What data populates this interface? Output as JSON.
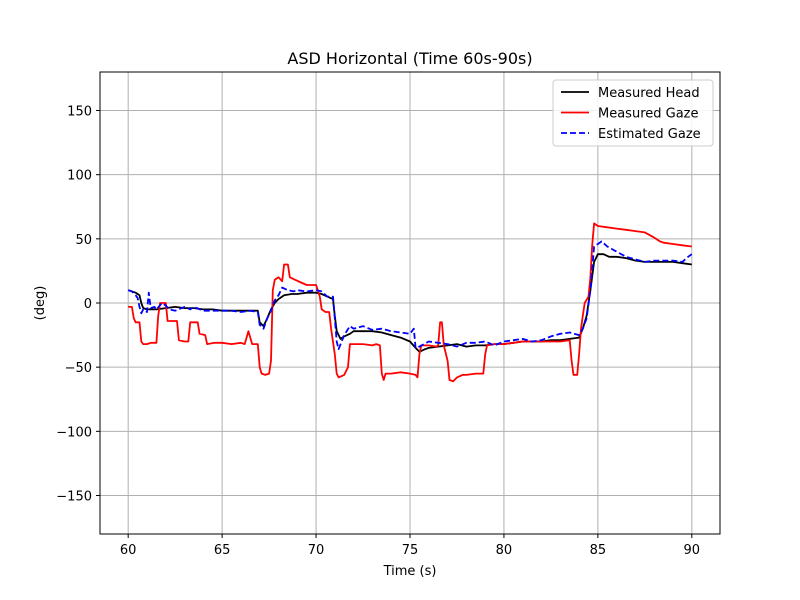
{
  "chart_data": {
    "type": "line",
    "title": "ASD Horizontal (Time 60s-90s)",
    "xlabel": "Time (s)",
    "ylabel": "(deg)",
    "xlim": [
      58.5,
      91.5
    ],
    "ylim": [
      -180,
      180
    ],
    "xticks": [
      60,
      65,
      70,
      75,
      80,
      85,
      90
    ],
    "yticks": [
      -150,
      -100,
      -50,
      0,
      50,
      100,
      150
    ],
    "grid": true,
    "legend_position": "top-right",
    "series": [
      {
        "name": "Measured Head",
        "color": "#000000",
        "dash": "solid",
        "points": [
          [
            60.0,
            10
          ],
          [
            60.4,
            8
          ],
          [
            60.6,
            6
          ],
          [
            60.7,
            0
          ],
          [
            60.8,
            -4
          ],
          [
            61.0,
            -5
          ],
          [
            61.5,
            -5
          ],
          [
            62.0,
            -4
          ],
          [
            62.5,
            -3
          ],
          [
            63.0,
            -4
          ],
          [
            63.5,
            -4
          ],
          [
            64.0,
            -5
          ],
          [
            64.5,
            -5
          ],
          [
            65.0,
            -6
          ],
          [
            65.5,
            -6
          ],
          [
            66.0,
            -6
          ],
          [
            66.5,
            -6
          ],
          [
            66.9,
            -6
          ],
          [
            67.0,
            -15
          ],
          [
            67.2,
            -18
          ],
          [
            67.4,
            -12
          ],
          [
            67.6,
            -5
          ],
          [
            67.8,
            0
          ],
          [
            68.0,
            3
          ],
          [
            68.3,
            6
          ],
          [
            68.7,
            7
          ],
          [
            69.0,
            7
          ],
          [
            69.5,
            8
          ],
          [
            70.0,
            8
          ],
          [
            70.3,
            7
          ],
          [
            70.6,
            5
          ],
          [
            70.9,
            3
          ],
          [
            71.0,
            -10
          ],
          [
            71.1,
            -22
          ],
          [
            71.3,
            -28
          ],
          [
            71.5,
            -26
          ],
          [
            71.8,
            -24
          ],
          [
            72.0,
            -22
          ],
          [
            72.5,
            -22
          ],
          [
            73.0,
            -22
          ],
          [
            73.5,
            -23
          ],
          [
            74.0,
            -25
          ],
          [
            74.5,
            -27
          ],
          [
            75.0,
            -30
          ],
          [
            75.3,
            -35
          ],
          [
            75.5,
            -38
          ],
          [
            75.8,
            -36
          ],
          [
            76.0,
            -35
          ],
          [
            76.5,
            -34
          ],
          [
            77.0,
            -33
          ],
          [
            77.5,
            -32
          ],
          [
            78.0,
            -34
          ],
          [
            78.5,
            -33
          ],
          [
            79.0,
            -33
          ],
          [
            79.5,
            -32
          ],
          [
            80.0,
            -32
          ],
          [
            80.5,
            -31
          ],
          [
            81.0,
            -30
          ],
          [
            81.5,
            -30
          ],
          [
            82.0,
            -30
          ],
          [
            82.5,
            -29
          ],
          [
            83.0,
            -29
          ],
          [
            83.5,
            -28
          ],
          [
            84.0,
            -27
          ],
          [
            84.2,
            -20
          ],
          [
            84.4,
            -10
          ],
          [
            84.6,
            10
          ],
          [
            84.8,
            32
          ],
          [
            85.0,
            38
          ],
          [
            85.3,
            38
          ],
          [
            85.6,
            36
          ],
          [
            86.0,
            36
          ],
          [
            86.5,
            35
          ],
          [
            87.0,
            33
          ],
          [
            87.5,
            32
          ],
          [
            88.0,
            32
          ],
          [
            88.5,
            32
          ],
          [
            89.0,
            32
          ],
          [
            89.5,
            31
          ],
          [
            90.0,
            30
          ]
        ]
      },
      {
        "name": "Measured Gaze",
        "color": "#ff0000",
        "dash": "solid",
        "points": [
          [
            60.0,
            -3
          ],
          [
            60.2,
            -3
          ],
          [
            60.3,
            -12
          ],
          [
            60.4,
            -15
          ],
          [
            60.6,
            -15
          ],
          [
            60.7,
            -30
          ],
          [
            60.8,
            -32
          ],
          [
            61.0,
            -32
          ],
          [
            61.2,
            -31
          ],
          [
            61.5,
            -31
          ],
          [
            61.6,
            -10
          ],
          [
            61.7,
            0
          ],
          [
            62.0,
            0
          ],
          [
            62.1,
            -14
          ],
          [
            62.6,
            -14
          ],
          [
            62.7,
            -29
          ],
          [
            63.0,
            -30
          ],
          [
            63.2,
            -30
          ],
          [
            63.3,
            -15
          ],
          [
            63.7,
            -15
          ],
          [
            63.8,
            -24
          ],
          [
            64.1,
            -25
          ],
          [
            64.2,
            -32
          ],
          [
            64.6,
            -31
          ],
          [
            65.0,
            -31
          ],
          [
            65.5,
            -32
          ],
          [
            66.0,
            -31
          ],
          [
            66.2,
            -32
          ],
          [
            66.4,
            -22
          ],
          [
            66.6,
            -32
          ],
          [
            66.9,
            -32
          ],
          [
            67.0,
            -50
          ],
          [
            67.1,
            -55
          ],
          [
            67.3,
            -56
          ],
          [
            67.5,
            -55
          ],
          [
            67.6,
            -45
          ],
          [
            67.7,
            10
          ],
          [
            67.8,
            18
          ],
          [
            68.0,
            20
          ],
          [
            68.2,
            17
          ],
          [
            68.3,
            30
          ],
          [
            68.5,
            30
          ],
          [
            68.6,
            20
          ],
          [
            68.9,
            18
          ],
          [
            69.2,
            16
          ],
          [
            69.5,
            14
          ],
          [
            69.8,
            14
          ],
          [
            70.0,
            14
          ],
          [
            70.2,
            5
          ],
          [
            70.3,
            -5
          ],
          [
            70.5,
            -7
          ],
          [
            70.7,
            -7
          ],
          [
            70.8,
            -20
          ],
          [
            71.0,
            -40
          ],
          [
            71.1,
            -55
          ],
          [
            71.2,
            -58
          ],
          [
            71.5,
            -56
          ],
          [
            71.7,
            -50
          ],
          [
            71.8,
            -32
          ],
          [
            72.0,
            -32
          ],
          [
            72.5,
            -32
          ],
          [
            73.0,
            -33
          ],
          [
            73.2,
            -32
          ],
          [
            73.4,
            -33
          ],
          [
            73.5,
            -55
          ],
          [
            73.6,
            -60
          ],
          [
            73.7,
            -55
          ],
          [
            74.0,
            -55
          ],
          [
            74.5,
            -54
          ],
          [
            75.0,
            -55
          ],
          [
            75.3,
            -56
          ],
          [
            75.4,
            -58
          ],
          [
            75.5,
            -40
          ],
          [
            75.6,
            -33
          ],
          [
            76.0,
            -33
          ],
          [
            76.4,
            -34
          ],
          [
            76.5,
            -33
          ],
          [
            76.6,
            -15
          ],
          [
            76.7,
            -15
          ],
          [
            76.8,
            -33
          ],
          [
            77.0,
            -45
          ],
          [
            77.1,
            -60
          ],
          [
            77.3,
            -61
          ],
          [
            77.5,
            -58
          ],
          [
            77.8,
            -56
          ],
          [
            78.0,
            -56
          ],
          [
            78.5,
            -55
          ],
          [
            78.9,
            -55
          ],
          [
            79.0,
            -40
          ],
          [
            79.1,
            -33
          ],
          [
            79.5,
            -32
          ],
          [
            80.0,
            -32
          ],
          [
            80.5,
            -31
          ],
          [
            81.0,
            -30
          ],
          [
            81.5,
            -30
          ],
          [
            82.0,
            -30
          ],
          [
            82.5,
            -30
          ],
          [
            83.0,
            -30
          ],
          [
            83.5,
            -29
          ],
          [
            83.6,
            -45
          ],
          [
            83.7,
            -56
          ],
          [
            83.9,
            -56
          ],
          [
            84.0,
            -40
          ],
          [
            84.1,
            -20
          ],
          [
            84.2,
            -10
          ],
          [
            84.3,
            0
          ],
          [
            84.5,
            5
          ],
          [
            84.6,
            20
          ],
          [
            84.7,
            45
          ],
          [
            84.8,
            62
          ],
          [
            85.0,
            60
          ],
          [
            85.5,
            59
          ],
          [
            86.0,
            58
          ],
          [
            86.5,
            57
          ],
          [
            87.0,
            56
          ],
          [
            87.5,
            55
          ],
          [
            88.0,
            51
          ],
          [
            88.3,
            48
          ],
          [
            88.5,
            47
          ],
          [
            89.0,
            46
          ],
          [
            89.5,
            45
          ],
          [
            90.0,
            44
          ]
        ]
      },
      {
        "name": "Estimated Gaze",
        "color": "#0000ff",
        "dash": "dashed",
        "points": [
          [
            60.0,
            10
          ],
          [
            60.2,
            9
          ],
          [
            60.4,
            6
          ],
          [
            60.5,
            4
          ],
          [
            60.6,
            -3
          ],
          [
            60.7,
            -8
          ],
          [
            60.8,
            -5
          ],
          [
            61.0,
            -7
          ],
          [
            61.1,
            8
          ],
          [
            61.2,
            -4
          ],
          [
            61.4,
            -3
          ],
          [
            61.5,
            -5
          ],
          [
            61.8,
            0
          ],
          [
            62.0,
            -2
          ],
          [
            62.2,
            -5
          ],
          [
            62.5,
            -6
          ],
          [
            63.0,
            -3
          ],
          [
            63.3,
            -5
          ],
          [
            63.5,
            -3
          ],
          [
            64.0,
            -6
          ],
          [
            64.5,
            -6
          ],
          [
            65.0,
            -6
          ],
          [
            65.5,
            -6
          ],
          [
            66.0,
            -7
          ],
          [
            66.5,
            -6
          ],
          [
            66.9,
            -7
          ],
          [
            67.0,
            -17
          ],
          [
            67.2,
            -20
          ],
          [
            67.4,
            -12
          ],
          [
            67.6,
            -6
          ],
          [
            67.8,
            2
          ],
          [
            68.0,
            6
          ],
          [
            68.2,
            12
          ],
          [
            68.5,
            10
          ],
          [
            68.8,
            9
          ],
          [
            69.0,
            10
          ],
          [
            69.5,
            9
          ],
          [
            70.0,
            10
          ],
          [
            70.3,
            9
          ],
          [
            70.6,
            5
          ],
          [
            70.9,
            5
          ],
          [
            71.0,
            -12
          ],
          [
            71.1,
            -30
          ],
          [
            71.2,
            -36
          ],
          [
            71.5,
            -25
          ],
          [
            71.8,
            -18
          ],
          [
            72.0,
            -20
          ],
          [
            72.5,
            -18
          ],
          [
            73.0,
            -21
          ],
          [
            73.5,
            -20
          ],
          [
            74.0,
            -22
          ],
          [
            74.5,
            -23
          ],
          [
            75.0,
            -24
          ],
          [
            75.2,
            -20
          ],
          [
            75.3,
            -35
          ],
          [
            75.5,
            -34
          ],
          [
            76.0,
            -30
          ],
          [
            76.5,
            -31
          ],
          [
            77.0,
            -32
          ],
          [
            77.5,
            -34
          ],
          [
            78.0,
            -31
          ],
          [
            78.5,
            -31
          ],
          [
            79.0,
            -30
          ],
          [
            79.5,
            -33
          ],
          [
            80.0,
            -30
          ],
          [
            80.5,
            -29
          ],
          [
            81.0,
            -28
          ],
          [
            81.5,
            -30
          ],
          [
            82.0,
            -29
          ],
          [
            82.5,
            -26
          ],
          [
            83.0,
            -24
          ],
          [
            83.5,
            -23
          ],
          [
            84.0,
            -25
          ],
          [
            84.2,
            -20
          ],
          [
            84.4,
            -12
          ],
          [
            84.6,
            10
          ],
          [
            84.8,
            44
          ],
          [
            85.0,
            46
          ],
          [
            85.2,
            48
          ],
          [
            85.5,
            44
          ],
          [
            86.0,
            40
          ],
          [
            86.5,
            36
          ],
          [
            87.0,
            34
          ],
          [
            87.5,
            32
          ],
          [
            88.0,
            33
          ],
          [
            88.5,
            33
          ],
          [
            89.0,
            33
          ],
          [
            89.5,
            32
          ],
          [
            89.8,
            36
          ],
          [
            90.0,
            38
          ]
        ]
      }
    ]
  }
}
